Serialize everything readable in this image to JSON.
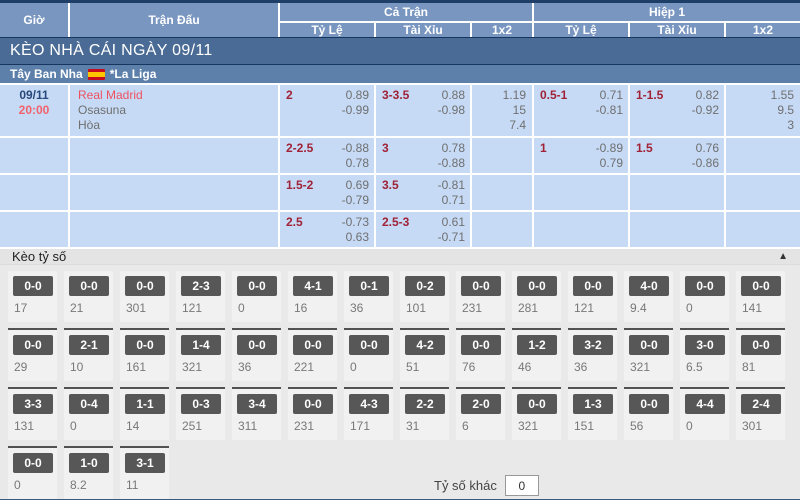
{
  "header": {
    "time": "Giờ",
    "match": "Trận Đấu",
    "full": "Cả Trận",
    "half": "Hiệp 1",
    "odds": "Tỷ Lệ",
    "ou": "Tài Xỉu",
    "x12": "1x2"
  },
  "banner": {
    "title": "KÈO NHÀ CÁI NGÀY 09/11"
  },
  "league": {
    "country": "Tây Ban Nha",
    "flag_icon": "spain-flag",
    "name": "*La Liga"
  },
  "odds_rows": [
    {
      "date": "09/11",
      "time": "20:00",
      "home": "Real Madrid",
      "away": "Osasuna",
      "draw": "Hòa",
      "ft_tl_hdp": "2",
      "ft_tl_o1": "0.89",
      "ft_tl_o2": "-0.99",
      "ft_tx_hdp": "3-3.5",
      "ft_tx_o1": "0.88",
      "ft_tx_o2": "-0.98",
      "ft_x1": "1.19",
      "ft_x2": "15",
      "ft_x3": "7.4",
      "h1_tl_hdp": "0.5-1",
      "h1_tl_o1": "0.71",
      "h1_tl_o2": "-0.81",
      "h1_tx_hdp": "1-1.5",
      "h1_tx_o1": "0.82",
      "h1_tx_o2": "-0.92",
      "h1_x1": "1.55",
      "h1_x2": "9.5",
      "h1_x3": "3"
    },
    {
      "ft_tl_hdp": "2-2.5",
      "ft_tl_o1": "-0.88",
      "ft_tl_o2": "0.78",
      "ft_tx_hdp": "3",
      "ft_tx_o1": "0.78",
      "ft_tx_o2": "-0.88",
      "h1_tl_hdp": "1",
      "h1_tl_o1": "-0.89",
      "h1_tl_o2": "0.79",
      "h1_tx_hdp": "1.5",
      "h1_tx_o1": "0.76",
      "h1_tx_o2": "-0.86"
    },
    {
      "ft_tl_hdp": "1.5-2",
      "ft_tl_o1": "0.69",
      "ft_tl_o2": "-0.79",
      "ft_tx_hdp": "3.5",
      "ft_tx_o1": "-0.81",
      "ft_tx_o2": "0.71"
    },
    {
      "ft_tl_hdp": "2.5",
      "ft_tl_o1": "-0.73",
      "ft_tl_o2": "0.63",
      "ft_tx_hdp": "2.5-3",
      "ft_tx_o1": "0.61",
      "ft_tx_o2": "-0.71"
    }
  ],
  "scores": {
    "title": "Kèo tỷ số",
    "collapse_icon": "▲",
    "r1": [
      {
        "score": "0-0",
        "odds": "17"
      },
      {
        "score": "0-0",
        "odds": "21"
      },
      {
        "score": "0-0",
        "odds": "301"
      },
      {
        "score": "2-3",
        "odds": "121"
      },
      {
        "score": "0-0",
        "odds": "0"
      },
      {
        "score": "4-1",
        "odds": "16"
      },
      {
        "score": "0-1",
        "odds": "36"
      },
      {
        "score": "0-2",
        "odds": "101"
      },
      {
        "score": "0-0",
        "odds": "231"
      },
      {
        "score": "0-0",
        "odds": "281"
      },
      {
        "score": "0-0",
        "odds": "121"
      },
      {
        "score": "4-0",
        "odds": "9.4"
      },
      {
        "score": "0-0",
        "odds": "0"
      },
      {
        "score": "0-0",
        "odds": "141"
      }
    ],
    "r2": [
      {
        "score": "0-0",
        "odds": "29"
      },
      {
        "score": "2-1",
        "odds": "10"
      },
      {
        "score": "0-0",
        "odds": "161"
      },
      {
        "score": "1-4",
        "odds": "321"
      },
      {
        "score": "0-0",
        "odds": "36"
      },
      {
        "score": "0-0",
        "odds": "221"
      },
      {
        "score": "0-0",
        "odds": "0"
      },
      {
        "score": "4-2",
        "odds": "51"
      },
      {
        "score": "0-0",
        "odds": "76"
      },
      {
        "score": "1-2",
        "odds": "46"
      },
      {
        "score": "3-2",
        "odds": "36"
      },
      {
        "score": "0-0",
        "odds": "321"
      },
      {
        "score": "3-0",
        "odds": "6.5"
      },
      {
        "score": "0-0",
        "odds": "81"
      }
    ],
    "r3": [
      {
        "score": "3-3",
        "odds": "131"
      },
      {
        "score": "0-4",
        "odds": "0"
      },
      {
        "score": "1-1",
        "odds": "14"
      },
      {
        "score": "0-3",
        "odds": "251"
      },
      {
        "score": "3-4",
        "odds": "311"
      },
      {
        "score": "0-0",
        "odds": "231"
      },
      {
        "score": "4-3",
        "odds": "171"
      },
      {
        "score": "2-2",
        "odds": "31"
      },
      {
        "score": "2-0",
        "odds": "6"
      },
      {
        "score": "0-0",
        "odds": "321"
      },
      {
        "score": "1-3",
        "odds": "151"
      },
      {
        "score": "0-0",
        "odds": "56"
      },
      {
        "score": "4-4",
        "odds": "0"
      },
      {
        "score": "2-4",
        "odds": "301"
      }
    ],
    "r4": [
      {
        "score": "0-0",
        "odds": "0"
      },
      {
        "score": "1-0",
        "odds": "8.2"
      },
      {
        "score": "3-1",
        "odds": "11"
      }
    ],
    "other_label": "Tỷ số khác",
    "other_value": "0"
  },
  "colors": {
    "header_blue": "#7996c0",
    "banner_blue": "#4a6b95",
    "league_blue": "#5d80ab",
    "cell_blue": "#c6daf5",
    "handicap_maroon": "#a02236",
    "team_red": "#ef5060",
    "time_red": "#f2626d",
    "date_navy": "#27497b",
    "score_button_gray": "#575757",
    "bottom_bar_navy": "#3c5a80"
  }
}
